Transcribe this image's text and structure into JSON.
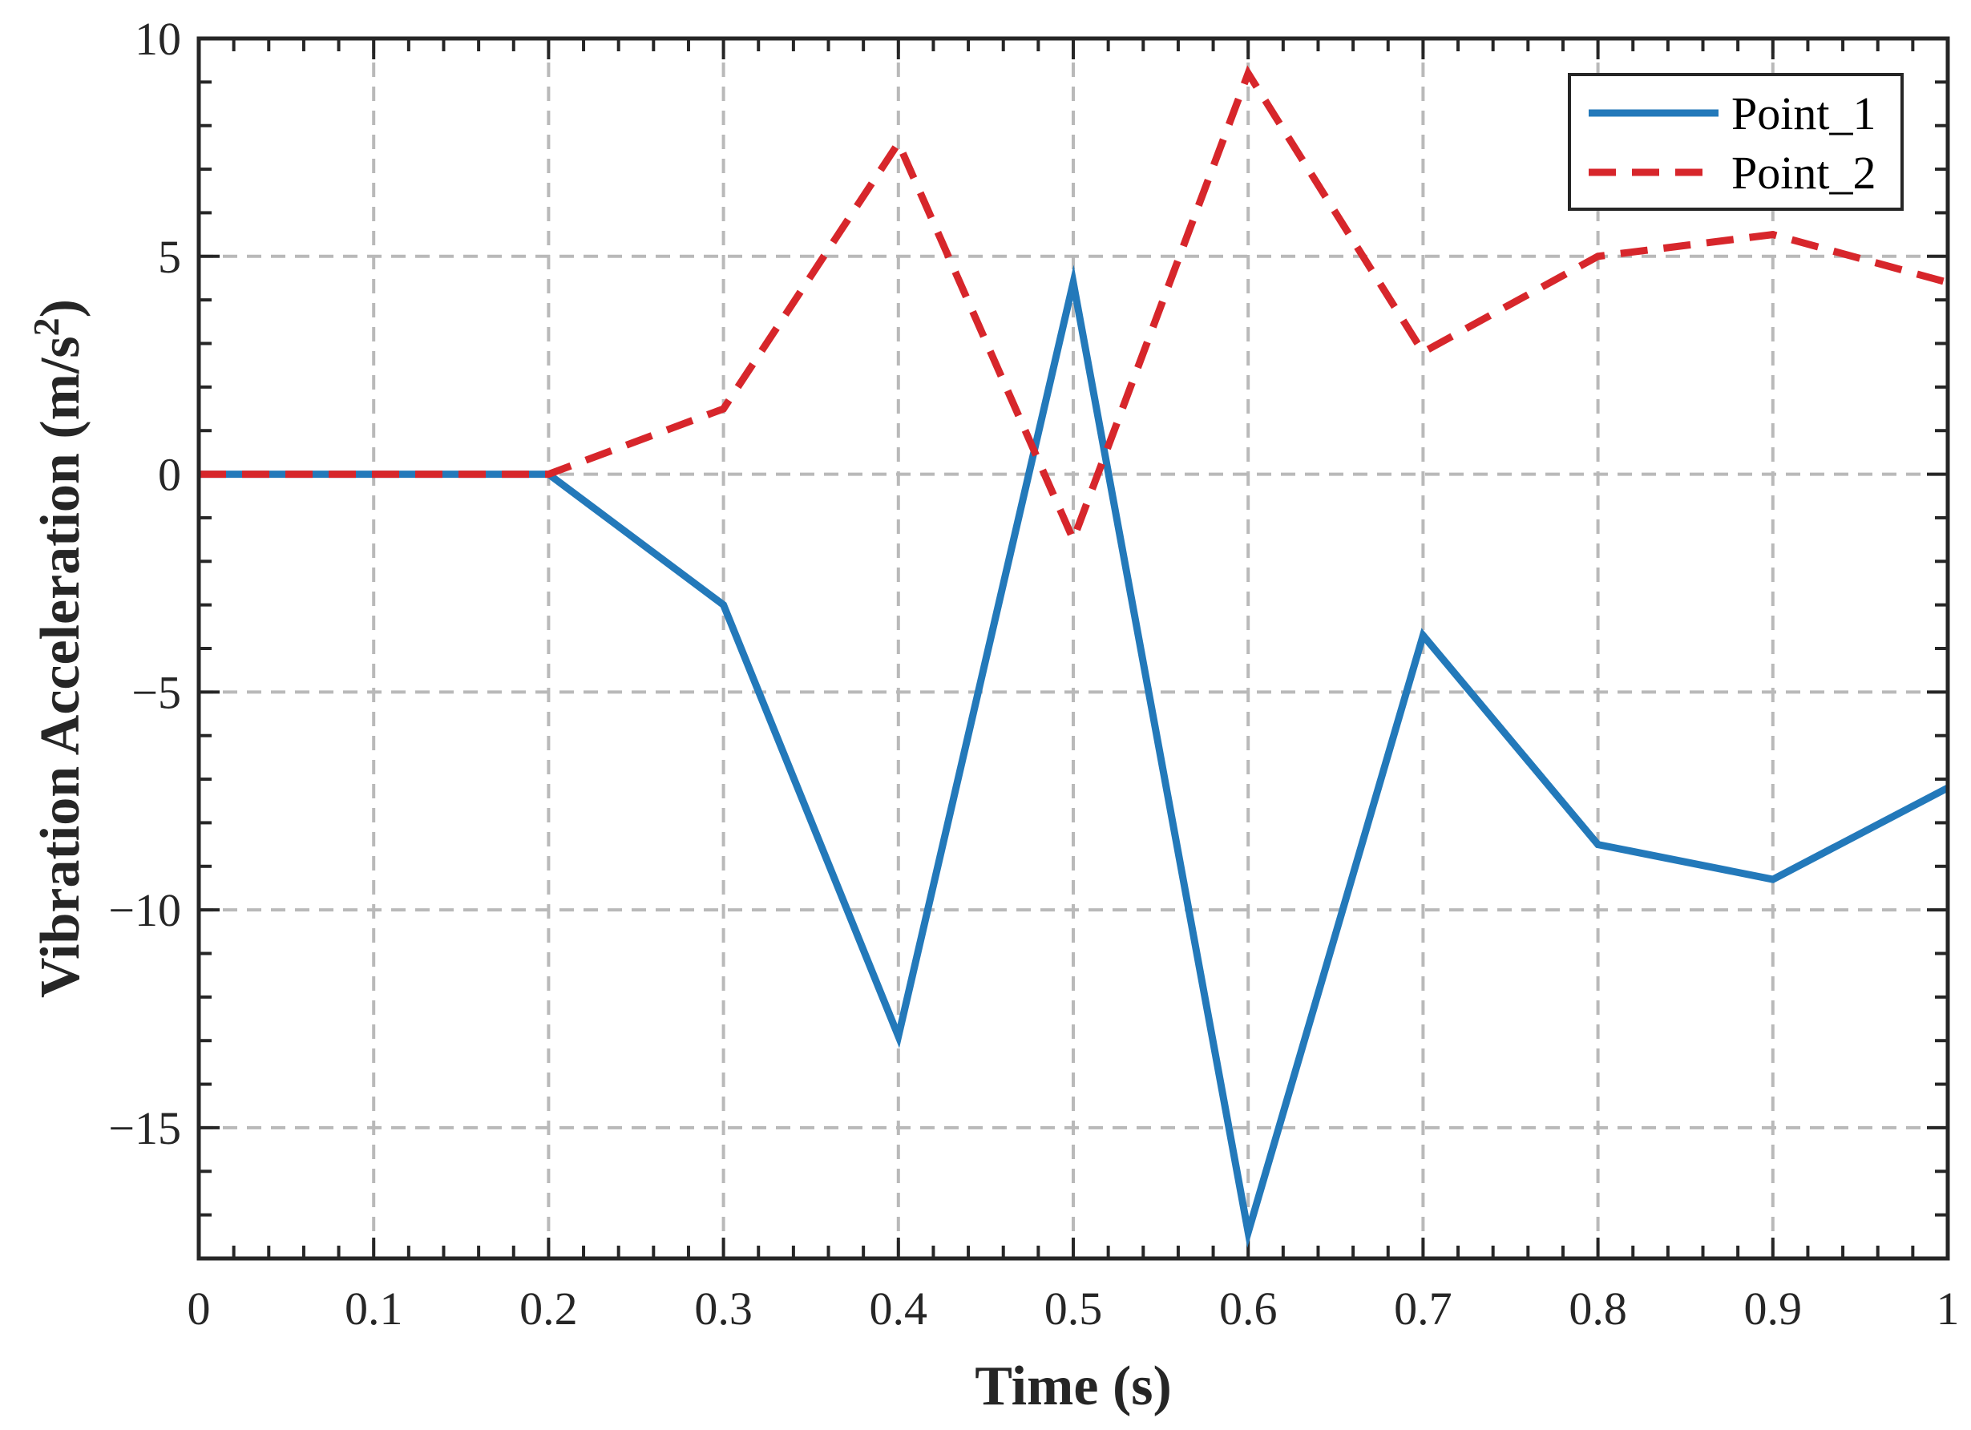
{
  "chart_data": {
    "type": "line",
    "title": "",
    "xlabel": "Time (s)",
    "ylabel_main": "Vibration Acceleration (m/s",
    "ylabel_sup": "2",
    "ylabel_close": ")",
    "xlim": [
      0,
      1
    ],
    "ylim": [
      -18,
      10
    ],
    "xticks": [
      0,
      0.1,
      0.2,
      0.3,
      0.4,
      0.5,
      0.6,
      0.7,
      0.8,
      0.9,
      1
    ],
    "xtick_labels": [
      "0",
      "0.1",
      "0.2",
      "0.3",
      "0.4",
      "0.5",
      "0.6",
      "0.7",
      "0.8",
      "0.9",
      "1"
    ],
    "yticks": [
      10,
      5,
      0,
      -5,
      -10,
      -15
    ],
    "ytick_labels": [
      "10",
      "5",
      "0",
      "−5",
      "−10",
      "−15"
    ],
    "grid": true,
    "legend_position": "top-right",
    "x": [
      0,
      0.1,
      0.2,
      0.3,
      0.4,
      0.5,
      0.6,
      0.7,
      0.8,
      0.9,
      1.0
    ],
    "series": [
      {
        "name": "Point_1",
        "style": "solid",
        "color": "#2379BA",
        "values": [
          0,
          0,
          0,
          -3.0,
          -12.9,
          4.4,
          -17.4,
          -3.7,
          -8.5,
          -9.3,
          -7.2
        ]
      },
      {
        "name": "Point_2",
        "style": "dashed",
        "color": "#D7262B",
        "values": [
          0,
          0,
          0,
          1.5,
          7.6,
          -1.5,
          9.2,
          2.8,
          5.0,
          5.5,
          4.4
        ]
      }
    ]
  }
}
